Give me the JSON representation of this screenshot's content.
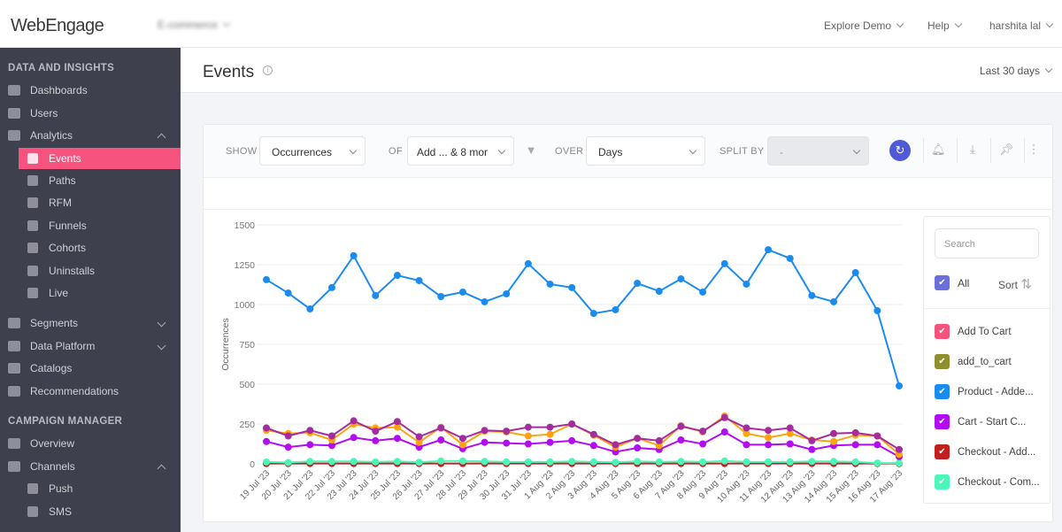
{
  "header": {
    "logo": "WebEngage",
    "project": "E-commerce",
    "explore_demo": "Explore Demo",
    "help": "Help",
    "user": "harshita lal"
  },
  "sidebar": {
    "section1": "DATA AND INSIGHTS",
    "items1": [
      {
        "label": "Dashboards",
        "icon": "dashboard-icon"
      },
      {
        "label": "Users",
        "icon": "users-icon"
      },
      {
        "label": "Analytics",
        "icon": "analytics-icon",
        "expanded": true
      },
      {
        "label": "Events",
        "icon": "star-icon",
        "sub": true,
        "active": true
      },
      {
        "label": "Paths",
        "icon": "bar-chart-icon",
        "sub": true
      },
      {
        "label": "RFM",
        "icon": "grid-icon",
        "sub": true
      },
      {
        "label": "Funnels",
        "icon": "funnel-icon",
        "sub": true
      },
      {
        "label": "Cohorts",
        "icon": "cohorts-icon",
        "sub": true
      },
      {
        "label": "Uninstalls",
        "icon": "uninstall-icon",
        "sub": true
      },
      {
        "label": "Live",
        "icon": "live-icon",
        "sub": true
      },
      {
        "label": "Segments",
        "icon": "pie-icon",
        "collapsed": true
      },
      {
        "label": "Data Platform",
        "icon": "cloud-icon",
        "collapsed": true
      },
      {
        "label": "Catalogs",
        "icon": "catalog-icon"
      },
      {
        "label": "Recommendations",
        "icon": "badge-icon"
      }
    ],
    "section2": "CAMPAIGN MANAGER",
    "items2": [
      {
        "label": "Overview",
        "icon": "eye-icon"
      },
      {
        "label": "Channels",
        "icon": "channels-icon",
        "expanded": true
      },
      {
        "label": "Push",
        "icon": "push-icon",
        "sub": true
      },
      {
        "label": "SMS",
        "icon": "sms-icon",
        "sub": true
      }
    ]
  },
  "page": {
    "title": "Events",
    "date_range": "Last 30 days"
  },
  "toolbar": {
    "show_label": "SHOW",
    "show_value": "Occurrences",
    "of_label": "OF",
    "of_value": "Add ... & 8 mor",
    "over_label": "OVER",
    "over_value": "Days",
    "split_label": "SPLIT BY",
    "split_value": "-"
  },
  "legend": {
    "search_placeholder": "Search",
    "all_label": "All",
    "sort_label": "Sort",
    "items": [
      {
        "label": "Add To Cart",
        "color": "#f6547f"
      },
      {
        "label": "add_to_cart",
        "color": "#8f8f2e"
      },
      {
        "label": "Product - Adde...",
        "color": "#1a8cf0"
      },
      {
        "label": "Cart - Start C...",
        "color": "#b20cf0"
      },
      {
        "label": "Checkout - Add...",
        "color": "#c21f1f"
      },
      {
        "label": "Checkout - Com...",
        "color": "#4cf5b8"
      }
    ]
  },
  "chart_data": {
    "type": "line",
    "ylabel": "Occurrences",
    "ylim": [
      0,
      1500
    ],
    "yticks": [
      0,
      250,
      500,
      750,
      1000,
      1250,
      1500
    ],
    "grid": true,
    "legend_placement": "right",
    "categories": [
      "19 Jul '23",
      "20 Jul '23",
      "21 Jul '23",
      "22 Jul '23",
      "23 Jul '23",
      "24 Jul '23",
      "25 Jul '23",
      "26 Jul '23",
      "27 Jul '23",
      "28 Jul '23",
      "29 Jul '23",
      "30 Jul '23",
      "31 Jul '23",
      "1 Aug '23",
      "2 Aug '23",
      "3 Aug '23",
      "4 Aug '23",
      "5 Aug '23",
      "6 Aug '23",
      "7 Aug '23",
      "8 Aug '23",
      "9 Aug '23",
      "10 Aug '23",
      "11 Aug '23",
      "12 Aug '23",
      "13 Aug '23",
      "14 Aug '23",
      "15 Aug '23",
      "16 Aug '23",
      "17 Aug '23"
    ],
    "series": [
      {
        "color": "#1a8cf0",
        "values": [
          1156,
          1072,
          972,
          1106,
          1306,
          1056,
          1183,
          1150,
          1050,
          1078,
          1017,
          1067,
          1256,
          1128,
          1106,
          944,
          967,
          1133,
          1083,
          1161,
          1078,
          1256,
          1128,
          1344,
          1289,
          1056,
          1017,
          1200,
          961,
          489
        ]
      },
      {
        "color": "#a52c9e",
        "values": [
          225,
          175,
          210,
          175,
          270,
          205,
          265,
          170,
          225,
          160,
          210,
          205,
          230,
          230,
          250,
          185,
          120,
          160,
          145,
          235,
          205,
          290,
          225,
          210,
          225,
          145,
          190,
          195,
          175,
          90
        ]
      },
      {
        "color": "#ffa40c",
        "values": [
          210,
          190,
          195,
          150,
          250,
          225,
          230,
          135,
          230,
          120,
          205,
          200,
          175,
          185,
          250,
          180,
          105,
          160,
          115,
          240,
          200,
          300,
          190,
          165,
          190,
          150,
          140,
          180,
          175,
          60
        ]
      },
      {
        "color": "#b20cf0",
        "values": [
          140,
          105,
          120,
          115,
          165,
          145,
          160,
          105,
          150,
          95,
          135,
          130,
          125,
          135,
          145,
          115,
          75,
          100,
          90,
          150,
          125,
          200,
          120,
          120,
          125,
          90,
          115,
          120,
          120,
          45
        ]
      },
      {
        "color": "#4cf5b8",
        "values": [
          12,
          8,
          15,
          15,
          15,
          12,
          15,
          10,
          18,
          18,
          15,
          12,
          12,
          12,
          15,
          12,
          10,
          15,
          12,
          15,
          12,
          18,
          12,
          12,
          12,
          15,
          15,
          12,
          5,
          5
        ]
      },
      {
        "color": "#c21f1f",
        "values": [
          2,
          2,
          2,
          2,
          2,
          2,
          2,
          2,
          2,
          2,
          2,
          2,
          2,
          2,
          2,
          2,
          2,
          2,
          2,
          2,
          2,
          2,
          2,
          2,
          2,
          2,
          2,
          2,
          2,
          2
        ]
      }
    ]
  }
}
